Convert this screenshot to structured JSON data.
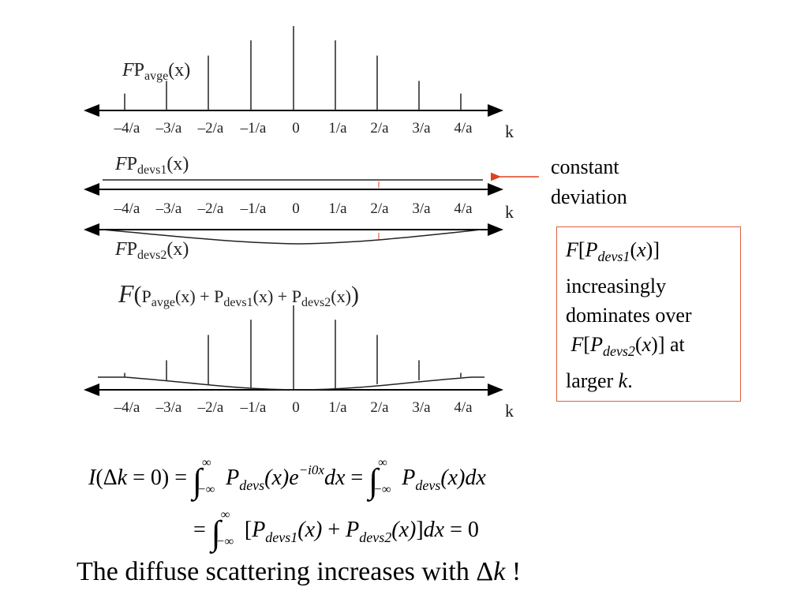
{
  "diagram": {
    "k_ticks": [
      "–4/a",
      "–3/a",
      "–2/a",
      "–1/a",
      "0",
      "1/a",
      "2/a",
      "3/a",
      "4/a"
    ],
    "k_symbol": "k",
    "panel1": {
      "F": "F",
      "P": "P",
      "sub": "avge",
      "arg": "(x)"
    },
    "panel2": {
      "F": "F",
      "P": "P",
      "sub": "devs1",
      "arg": "(x)"
    },
    "panel3": {
      "F": "F",
      "P": "P",
      "sub": "devs2",
      "arg": "(x)"
    },
    "panel4": {
      "F": "F",
      "open": "(",
      "P1": "P",
      "sub1": "avge",
      "arg1": "(x) + ",
      "P2": "P",
      "sub2": "devs1",
      "arg2": "(x) + ",
      "P3": "P",
      "sub3": "devs2",
      "arg3": "(x)",
      "close": ")"
    },
    "peak_heights_relative": [
      0.2,
      0.35,
      0.65,
      0.83,
      1.0,
      0.83,
      0.65,
      0.35,
      0.2
    ],
    "colors": {
      "axis": "#000000",
      "curve": "#222222",
      "marker": "#e04020"
    }
  },
  "annotation": {
    "line1": "constant",
    "line2": "deviation"
  },
  "callout": {
    "F1": "F",
    "P1": "P",
    "sub1": "devs1",
    "arg1": "(",
    "x1": "x",
    "close1": ")]",
    "line2": "increasingly",
    "line3": "dominates over",
    "F2": "F",
    "P2": "P",
    "sub2": "devs2",
    "arg2": "(",
    "x2": "x",
    "close2": ")]",
    "at": " at",
    "line5": "larger ",
    "k": "k",
    "period": "."
  },
  "equation1": {
    "I": "I",
    "lhs": "(Δ",
    "k": "k",
    "lhs_tail": " = 0) = ",
    "int_upper": "∞",
    "int_lower": "−∞",
    "P": "P",
    "sub": "devs",
    "xarg": "(x)",
    "e": "e",
    "exp": "−i0x",
    "dx": "dx",
    "eq": " = ",
    "P_b": "P",
    "sub_b": "devs",
    "xarg_b": "(x)",
    "dx_b": "dx"
  },
  "equation2": {
    "eq": "= ",
    "int_upper": "∞",
    "int_lower": "−∞",
    "open": "[",
    "P1": "P",
    "sub1": "devs1",
    "x1": "(x)",
    "plus": " + ",
    "P2": "P",
    "sub2": "devs2",
    "x2": "(x)",
    "close": "]",
    "dx": "dx",
    "tail": " = 0"
  },
  "conclusion": {
    "text": "The diffuse scattering increases with Δ",
    "k": "k",
    "tail": " !"
  }
}
